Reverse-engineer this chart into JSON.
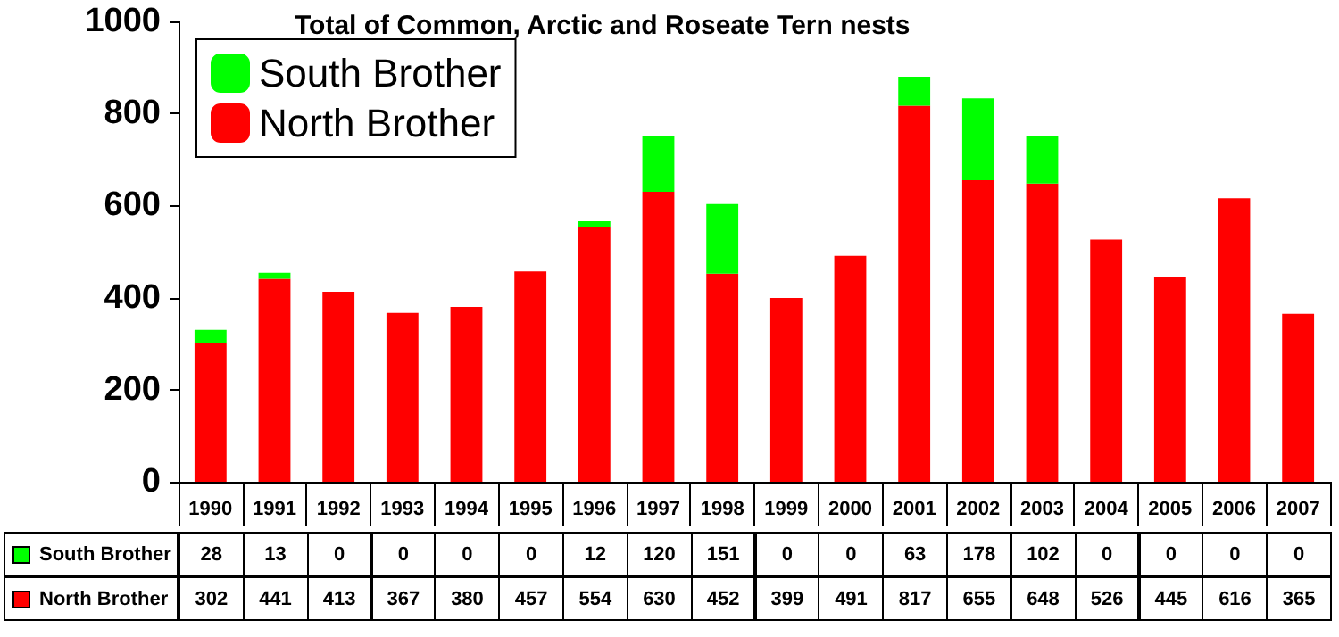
{
  "chart_data": {
    "type": "bar",
    "title": "Total of Common, Arctic and Roseate Tern nests",
    "categories": [
      "1990",
      "1991",
      "1992",
      "1993",
      "1994",
      "1995",
      "1996",
      "1997",
      "1998",
      "1999",
      "2000",
      "2001",
      "2002",
      "2003",
      "2004",
      "2005",
      "2006",
      "2007"
    ],
    "series": [
      {
        "name": "North Brother",
        "color": "#ff0000",
        "values": [
          302,
          441,
          413,
          367,
          380,
          457,
          554,
          630,
          452,
          399,
          491,
          817,
          655,
          648,
          526,
          445,
          616,
          365
        ]
      },
      {
        "name": "South Brother",
        "color": "#00ff00",
        "values": [
          28,
          13,
          0,
          0,
          0,
          0,
          12,
          120,
          151,
          0,
          0,
          63,
          178,
          102,
          0,
          0,
          0,
          0
        ]
      }
    ],
    "stacked": true,
    "ylim": [
      0,
      1000
    ],
    "yticks": [
      0,
      200,
      400,
      600,
      800,
      1000
    ],
    "grid": false,
    "legend": "top left",
    "data_labels": true
  }
}
